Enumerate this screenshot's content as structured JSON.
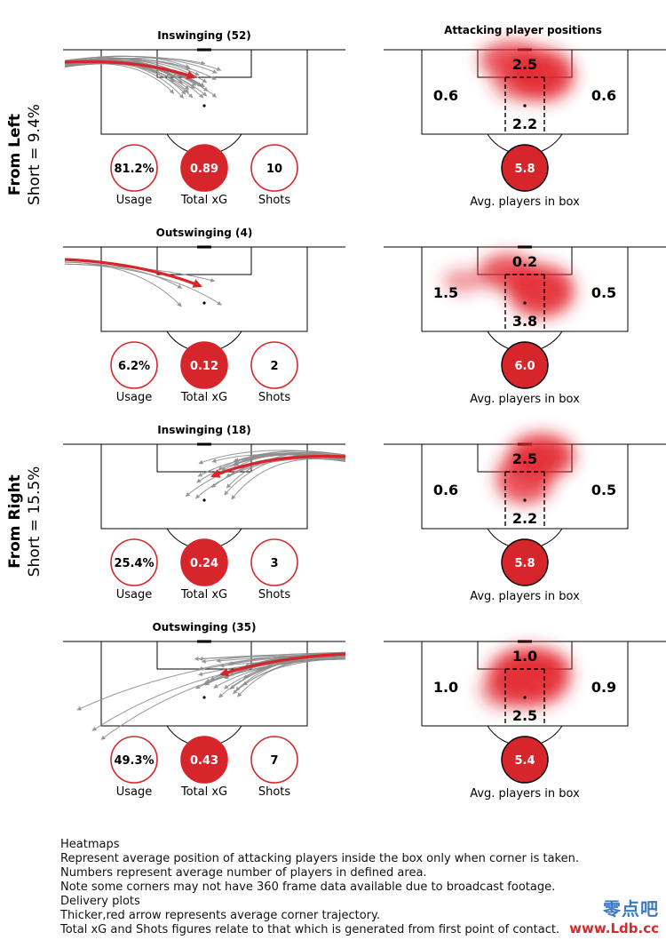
{
  "colors": {
    "red": "#d7262b",
    "arrow_grey": "#8c8c8c",
    "heat": "#e3262f"
  },
  "groups": [
    {
      "main": "From Left",
      "sub": "Short = 9.4%"
    },
    {
      "main": "From Right",
      "sub": "Short = 15.5%"
    }
  ],
  "heatmap_header": "Attacking player positions",
  "chart_data": [
    {
      "type": "other",
      "side": "left",
      "title": "Inswinging (52)",
      "deliveries": 52,
      "usage": "81.2%",
      "total_xg": "0.89",
      "shots": "10",
      "usage_label": "Usage",
      "xg_label": "Total xG",
      "shots_label": "Shots",
      "heat": {
        "top": "2.5",
        "left": "0.6",
        "right": "0.6",
        "bottom": "2.2",
        "avg": "5.8",
        "avg_label": "Avg. players in box",
        "blobs": [
          [
            0.44,
            0.12,
            0.16,
            0.1,
            0.8
          ],
          [
            0.58,
            0.3,
            0.16,
            0.14,
            0.9
          ],
          [
            0.48,
            0.38,
            0.14,
            0.1,
            0.6
          ]
        ]
      }
    },
    {
      "type": "other",
      "side": "left",
      "title": "Outswinging (4)",
      "deliveries": 4,
      "usage": "6.2%",
      "total_xg": "0.12",
      "shots": "2",
      "usage_label": "Usage",
      "xg_label": "Total xG",
      "shots_label": "Shots",
      "heat": {
        "top": "0.2",
        "left": "1.5",
        "right": "0.5",
        "bottom": "3.8",
        "avg": "6.0",
        "avg_label": "Avg. players in box",
        "blobs": [
          [
            0.2,
            0.4,
            0.1,
            0.06,
            0.5
          ],
          [
            0.42,
            0.3,
            0.14,
            0.1,
            0.8
          ],
          [
            0.58,
            0.52,
            0.16,
            0.14,
            0.9
          ]
        ]
      }
    },
    {
      "type": "other",
      "side": "right",
      "title": "Inswinging (18)",
      "deliveries": 18,
      "usage": "25.4%",
      "total_xg": "0.24",
      "shots": "3",
      "usage_label": "Usage",
      "xg_label": "Total xG",
      "shots_label": "Shots",
      "heat": {
        "top": "2.5",
        "left": "0.6",
        "right": "0.5",
        "bottom": "2.2",
        "avg": "5.8",
        "avg_label": "Avg. players in box",
        "blobs": [
          [
            0.58,
            0.14,
            0.16,
            0.12,
            0.9
          ],
          [
            0.5,
            0.4,
            0.14,
            0.14,
            0.8
          ]
        ]
      }
    },
    {
      "type": "other",
      "side": "right",
      "title": "Outswinging (35)",
      "deliveries": 35,
      "usage": "49.3%",
      "total_xg": "0.43",
      "shots": "7",
      "usage_label": "Usage",
      "xg_label": "Total xG",
      "shots_label": "Shots",
      "heat": {
        "top": "1.0",
        "left": "1.0",
        "right": "0.9",
        "bottom": "2.5",
        "avg": "5.4",
        "avg_label": "Avg. players in box",
        "blobs": [
          [
            0.52,
            0.42,
            0.2,
            0.16,
            0.9
          ],
          [
            0.56,
            0.3,
            0.16,
            0.1,
            0.6
          ],
          [
            0.4,
            0.58,
            0.12,
            0.1,
            0.5
          ]
        ]
      }
    }
  ],
  "notes": [
    "Heatmaps",
    "Represent average position of attacking players inside the box only when corner is taken.",
    "Numbers represent average number of players in defined area.",
    "Note some corners may not have 360 frame data available due to broadcast footage.",
    "Delivery plots",
    "Thicker,red arrow represents average corner trajectory.",
    "Total xG and Shots figures relate to that which is generated from first point of contact."
  ],
  "watermark": {
    "line1": "零点吧",
    "line2": "www.Ldb.cc"
  }
}
